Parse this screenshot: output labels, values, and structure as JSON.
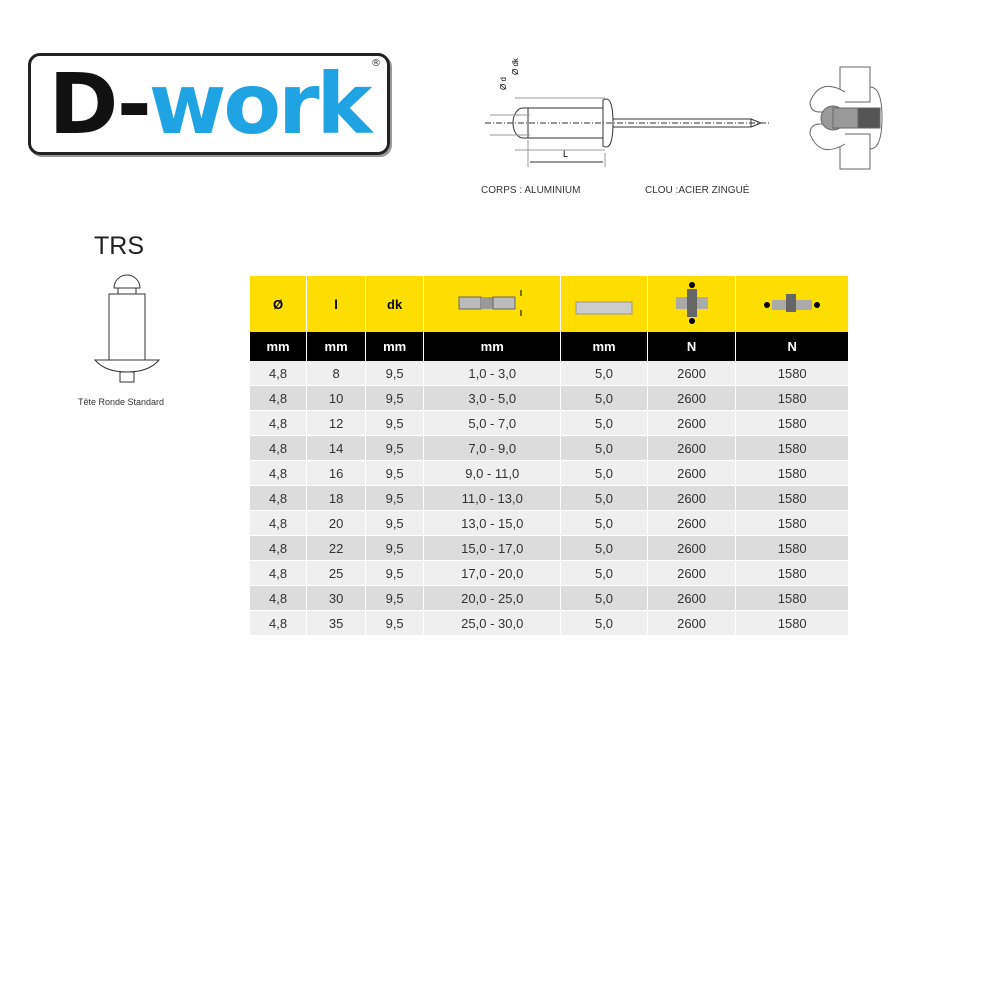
{
  "logo": {
    "text_d": "D-",
    "text_work": "work",
    "reg": "®",
    "brand_color": "#1fa3e3"
  },
  "diagram": {
    "label_d": "Ø d",
    "label_dk": "Ø dk",
    "label_L": "L",
    "body_material": "CORPS : ALUMINIUM",
    "nail_material": "CLOU :ACIER ZINGUÉ"
  },
  "head_type": {
    "code": "TRS",
    "caption": "Tête Ronde Standard"
  },
  "table": {
    "header_colors": {
      "yellow": "#fedd00",
      "black": "#000000"
    },
    "headers": [
      "Ø",
      "l",
      "dk",
      "grip-range-icon",
      "drill-diameter-icon",
      "shear-force-icon",
      "tensile-force-icon"
    ],
    "units": [
      "mm",
      "mm",
      "mm",
      "mm",
      "mm",
      "N",
      "N"
    ],
    "rows": [
      [
        "4,8",
        "8",
        "9,5",
        "1,0 - 3,0",
        "5,0",
        "2600",
        "1580"
      ],
      [
        "4,8",
        "10",
        "9,5",
        "3,0 - 5,0",
        "5,0",
        "2600",
        "1580"
      ],
      [
        "4,8",
        "12",
        "9,5",
        "5,0 - 7,0",
        "5,0",
        "2600",
        "1580"
      ],
      [
        "4,8",
        "14",
        "9,5",
        "7,0 - 9,0",
        "5,0",
        "2600",
        "1580"
      ],
      [
        "4,8",
        "16",
        "9,5",
        "9,0 - 11,0",
        "5,0",
        "2600",
        "1580"
      ],
      [
        "4,8",
        "18",
        "9,5",
        "11,0 - 13,0",
        "5,0",
        "2600",
        "1580"
      ],
      [
        "4,8",
        "20",
        "9,5",
        "13,0 - 15,0",
        "5,0",
        "2600",
        "1580"
      ],
      [
        "4,8",
        "22",
        "9,5",
        "15,0 - 17,0",
        "5,0",
        "2600",
        "1580"
      ],
      [
        "4,8",
        "25",
        "9,5",
        "17,0 - 20,0",
        "5,0",
        "2600",
        "1580"
      ],
      [
        "4,8",
        "30",
        "9,5",
        "20,0 - 25,0",
        "5,0",
        "2600",
        "1580"
      ],
      [
        "4,8",
        "35",
        "9,5",
        "25,0 - 30,0",
        "5,0",
        "2600",
        "1580"
      ]
    ]
  }
}
